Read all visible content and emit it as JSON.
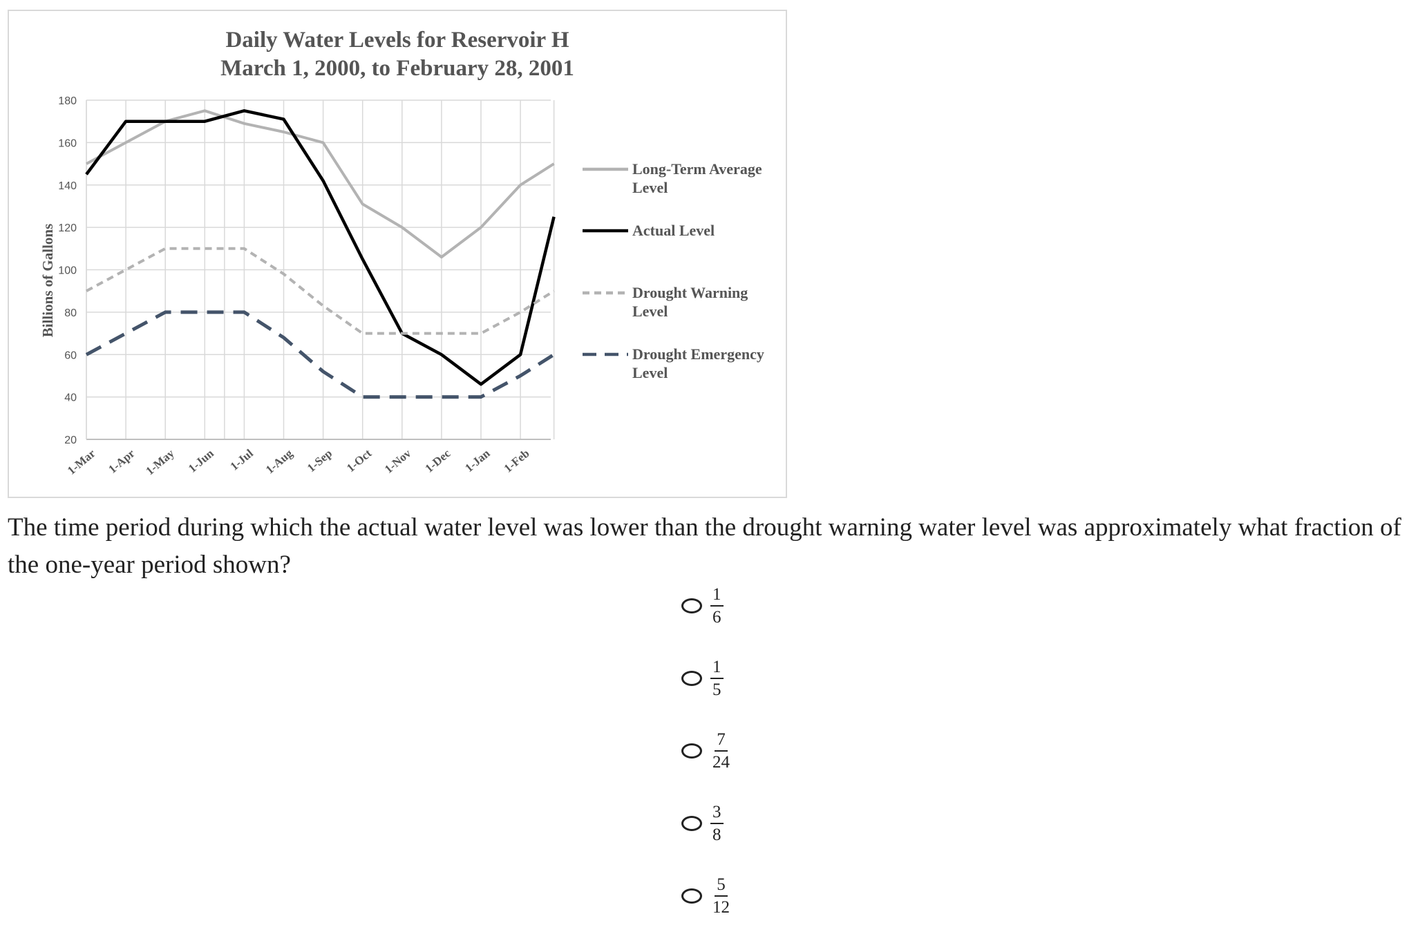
{
  "chart_data": {
    "type": "line",
    "title": "Daily Water Levels for Reservoir H",
    "subtitle": "March 1, 2000, to February 28, 2001",
    "ylabel": "Billions of Gallons",
    "xlabel": "",
    "ylim": [
      20,
      180
    ],
    "yticks": [
      20,
      40,
      60,
      80,
      100,
      120,
      140,
      160,
      180
    ],
    "categories": [
      "1-Mar",
      "1-Apr",
      "1-May",
      "1-Jun",
      "1-Jul",
      "1-Aug",
      "1-Sep",
      "1-Oct",
      "1-Nov",
      "1-Dec",
      "1-Jan",
      "1-Feb"
    ],
    "x_points": [
      0,
      1,
      2,
      3,
      3.5,
      4,
      5,
      6,
      7,
      8,
      9,
      10,
      11,
      11.85
    ],
    "grid": true,
    "legend_position": "right",
    "series": [
      {
        "name": "Long-Term Average Level",
        "label_lines": [
          "Long-Term Average",
          "Level"
        ],
        "color": "#b3b3b3",
        "dash": "solid",
        "points": [
          [
            0,
            150
          ],
          [
            1,
            160
          ],
          [
            2,
            170
          ],
          [
            3,
            175
          ],
          [
            4,
            169
          ],
          [
            5,
            165
          ],
          [
            6,
            160
          ],
          [
            7,
            131
          ],
          [
            8,
            120
          ],
          [
            9,
            106
          ],
          [
            10,
            120
          ],
          [
            11,
            140
          ],
          [
            11.85,
            150
          ]
        ]
      },
      {
        "name": "Actual Level",
        "label_lines": [
          "Actual Level"
        ],
        "color": "#000000",
        "dash": "solid",
        "points": [
          [
            0,
            145
          ],
          [
            1,
            170
          ],
          [
            2,
            170
          ],
          [
            3,
            170
          ],
          [
            4,
            175
          ],
          [
            5,
            171
          ],
          [
            6,
            142
          ],
          [
            7,
            105
          ],
          [
            8,
            70
          ],
          [
            9,
            60
          ],
          [
            10,
            46
          ],
          [
            11,
            60
          ],
          [
            11.85,
            125
          ]
        ]
      },
      {
        "name": "Drought Warning Level",
        "label_lines": [
          "Drought Warning",
          "Level"
        ],
        "color": "#b3b3b3",
        "dash": "short",
        "points": [
          [
            0,
            90
          ],
          [
            1,
            100
          ],
          [
            2,
            110
          ],
          [
            3,
            110
          ],
          [
            4,
            110
          ],
          [
            5,
            98
          ],
          [
            6,
            83
          ],
          [
            7,
            70
          ],
          [
            8,
            70
          ],
          [
            9,
            70
          ],
          [
            10,
            70
          ],
          [
            11,
            80
          ],
          [
            11.85,
            90
          ]
        ]
      },
      {
        "name": "Drought Emergency Level",
        "label_lines": [
          "Drought Emergency",
          "Level"
        ],
        "color": "#44546a",
        "dash": "long",
        "points": [
          [
            0,
            60
          ],
          [
            1,
            70
          ],
          [
            2,
            80
          ],
          [
            3,
            80
          ],
          [
            4,
            80
          ],
          [
            5,
            68
          ],
          [
            6,
            52
          ],
          [
            7,
            40
          ],
          [
            8,
            40
          ],
          [
            9,
            40
          ],
          [
            10,
            40
          ],
          [
            11,
            50
          ],
          [
            11.85,
            60
          ]
        ]
      }
    ]
  },
  "question": {
    "text": "The time period during which the actual water level was lower than the drought warning water level was approximately what fraction of the one-year period shown?",
    "choices": [
      {
        "numerator": "1",
        "denominator": "6"
      },
      {
        "numerator": "1",
        "denominator": "5"
      },
      {
        "numerator": "7",
        "denominator": "24"
      },
      {
        "numerator": "3",
        "denominator": "8"
      },
      {
        "numerator": "5",
        "denominator": "12"
      }
    ]
  }
}
